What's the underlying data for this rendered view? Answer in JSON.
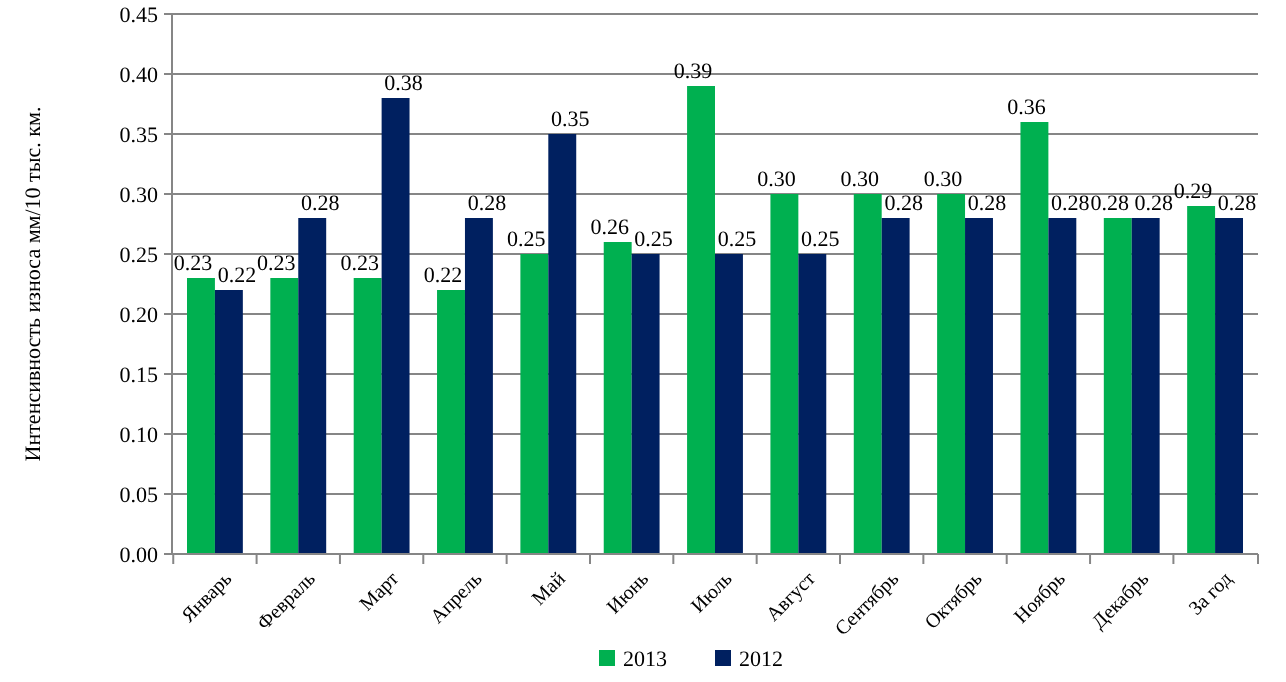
{
  "chart_data": {
    "type": "bar",
    "ylabel": "Интенсивность износа мм/10 тыс. км.",
    "categories": [
      "Январь",
      "Февраль",
      "Март",
      "Апрель",
      "Май",
      "Июнь",
      "Июль",
      "Август",
      "Сентябрь",
      "Октябрь",
      "Ноябрь",
      "Декабрь",
      "За год"
    ],
    "series": [
      {
        "name": "2013",
        "color": "#00b050",
        "values": [
          0.23,
          0.23,
          0.23,
          0.22,
          0.25,
          0.26,
          0.39,
          0.3,
          0.3,
          0.3,
          0.36,
          0.28,
          0.29
        ],
        "value_labels": [
          "0.23",
          "0.23",
          "0.23",
          "0.22",
          "0.25",
          "0.26",
          "0.39",
          "0.30",
          "0.30",
          "0.30",
          "0.36",
          "0.28",
          "0.29"
        ]
      },
      {
        "name": "2012",
        "color": "#002060",
        "values": [
          0.22,
          0.28,
          0.38,
          0.28,
          0.35,
          0.25,
          0.25,
          0.25,
          0.28,
          0.28,
          0.28,
          0.28,
          0.28
        ],
        "value_labels": [
          "0.22",
          "0.28",
          "0.38",
          "0.28",
          "0.35",
          "0.25",
          "0.25",
          "0.25",
          "0.28",
          "0.28",
          "0.28",
          "0.28",
          "0.28"
        ]
      }
    ],
    "ylim": [
      0,
      0.45
    ],
    "yticks": [
      {
        "value": 0,
        "label": "0.00"
      },
      0.05,
      {
        "value": 0.1,
        "label": "0.10"
      },
      0.15,
      {
        "value": 0.2,
        "label": "0.20"
      },
      0.25,
      {
        "value": 0.3,
        "label": "0.30"
      },
      0.35,
      {
        "value": 0.4,
        "label": "0.40"
      },
      0.45
    ],
    "grid": "y",
    "legend": "bottom"
  }
}
